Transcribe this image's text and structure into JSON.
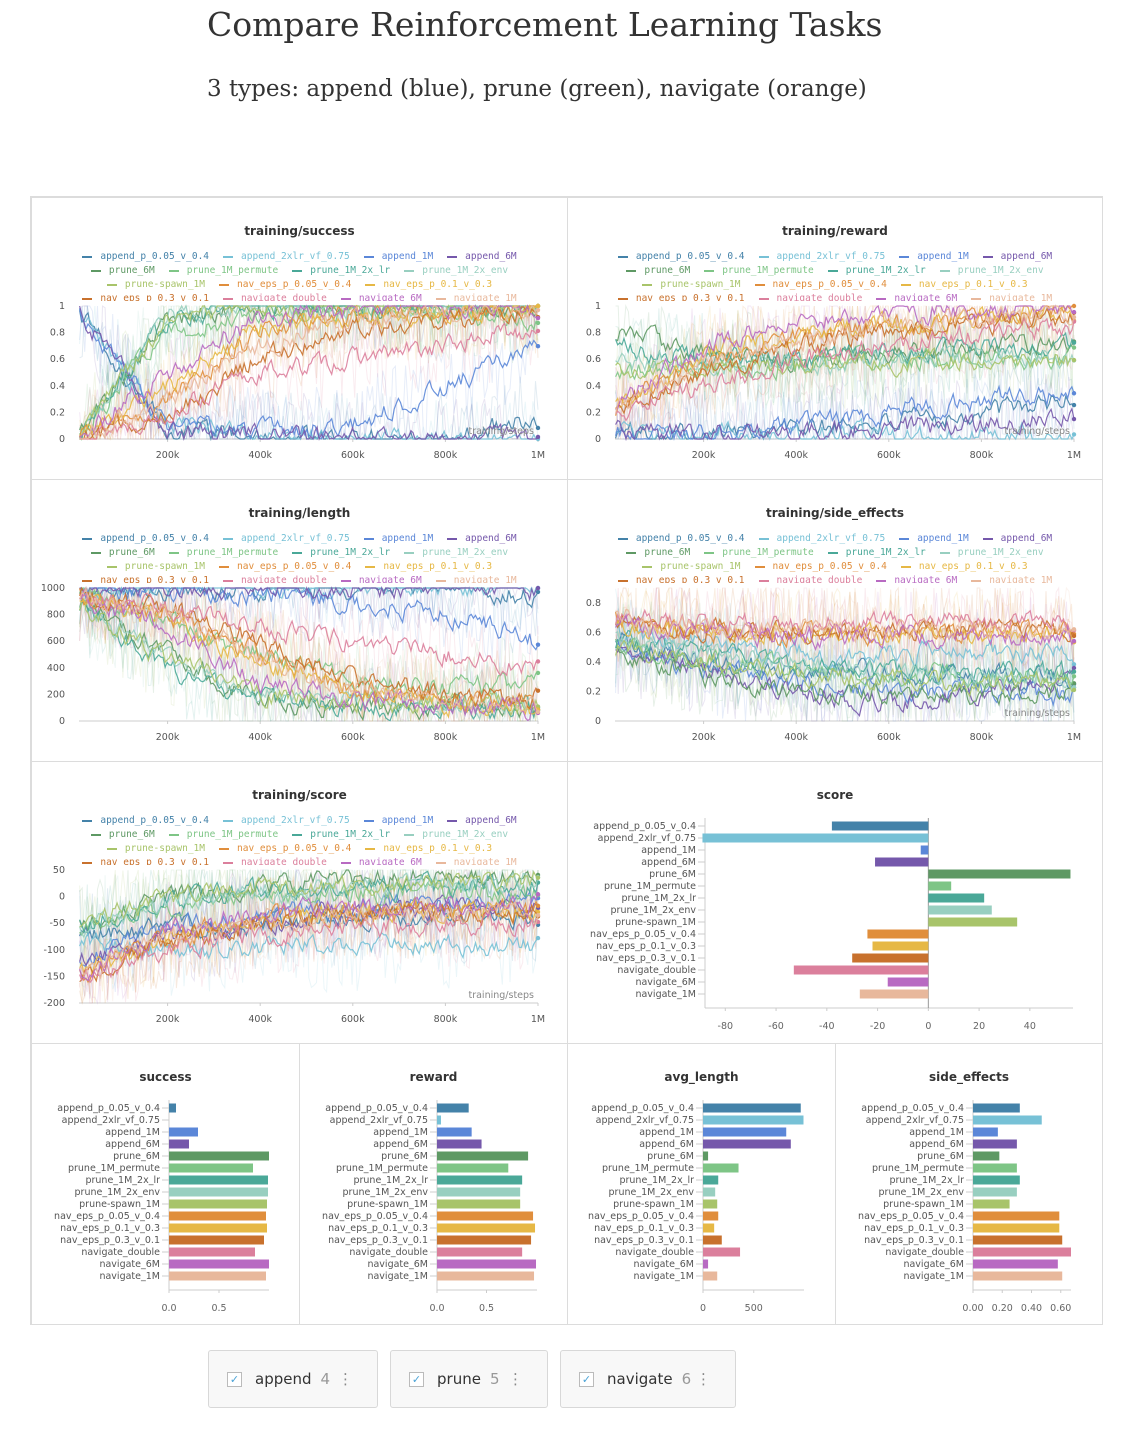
{
  "header": {
    "title": "Compare Reinforcement Learning Tasks",
    "subtitle": "3 types: append (blue), prune (green), navigate (orange)"
  },
  "runs": [
    {
      "name": "append_p_0.05_v_0.4",
      "color": "#4482a9"
    },
    {
      "name": "append_2xlr_vf_0.75",
      "color": "#77c1d6"
    },
    {
      "name": "append_1M",
      "color": "#5b87d8"
    },
    {
      "name": "append_6M",
      "color": "#7558ab"
    },
    {
      "name": "prune_6M",
      "color": "#5e9964"
    },
    {
      "name": "prune_1M_permute",
      "color": "#7ec586"
    },
    {
      "name": "prune_1M_2x_lr",
      "color": "#4aa898"
    },
    {
      "name": "prune_1M_2x_env",
      "color": "#98cfc0"
    },
    {
      "name": "prune-spawn_1M",
      "color": "#a8c46a"
    },
    {
      "name": "nav_eps_p_0.05_v_0.4",
      "color": "#e08e3c"
    },
    {
      "name": "nav_eps_p_0.1_v_0.3",
      "color": "#e6b845"
    },
    {
      "name": "nav_eps_p_0.3_v_0.1",
      "color": "#c8712d"
    },
    {
      "name": "navigate_double",
      "color": "#db7f9c"
    },
    {
      "name": "navigate_6M",
      "color": "#b86ac2"
    },
    {
      "name": "navigate_1M",
      "color": "#e8b89c"
    }
  ],
  "chart_data": [
    {
      "type": "line",
      "title": "training/success",
      "xlabel": "training/steps",
      "x": [
        0,
        200000,
        400000,
        600000,
        800000,
        1000000
      ],
      "xticks": [
        "200k",
        "400k",
        "600k",
        "800k",
        "1M"
      ],
      "ylim": [
        0,
        1
      ],
      "yticks": [
        "0",
        "0.2",
        "0.4",
        "0.6",
        "0.8",
        "1"
      ],
      "legend": "top",
      "series": [
        [
          1,
          0.05,
          0.02,
          0,
          0,
          0.17
        ],
        [
          1,
          0.1,
          0.02,
          0,
          0,
          0
        ],
        [
          1,
          0.1,
          0.05,
          0.1,
          0.4,
          0.7
        ],
        [
          1,
          0.05,
          0.02,
          0,
          0,
          0
        ],
        [
          0,
          0.9,
          1,
          1,
          1,
          0.98
        ],
        [
          0,
          0.8,
          0.95,
          0.97,
          0.95,
          0.85
        ],
        [
          0,
          0.9,
          1,
          1,
          1,
          0.98
        ],
        [
          0,
          0.95,
          1,
          1,
          1,
          0.98
        ],
        [
          0,
          0.9,
          0.98,
          0.98,
          0.97,
          0.98
        ],
        [
          0,
          0.3,
          0.8,
          0.95,
          0.95,
          0.95
        ],
        [
          0,
          0.4,
          0.85,
          0.9,
          0.95,
          0.97
        ],
        [
          0,
          0.2,
          0.6,
          0.85,
          0.9,
          0.95
        ],
        [
          0,
          0.2,
          0.5,
          0.6,
          0.7,
          0.85
        ],
        [
          0,
          0.5,
          0.9,
          0.98,
          1,
          1
        ],
        [
          0,
          0.3,
          0.7,
          0.9,
          0.95,
          0.97
        ]
      ]
    },
    {
      "type": "line",
      "title": "training/reward",
      "xlabel": "training/steps",
      "x": [
        0,
        200000,
        400000,
        600000,
        800000,
        1000000
      ],
      "xticks": [
        "200k",
        "400k",
        "600k",
        "800k",
        "1M"
      ],
      "ylim": [
        0,
        1
      ],
      "yticks": [
        "0",
        "0.2",
        "0.4",
        "0.6",
        "0.8",
        "1"
      ],
      "legend": "top",
      "series": [
        [
          0.05,
          0.05,
          0.08,
          0.12,
          0.2,
          0.3
        ],
        [
          0.03,
          0.03,
          0.03,
          0.03,
          0.03,
          0.03
        ],
        [
          0.05,
          0.05,
          0.1,
          0.2,
          0.3,
          0.35
        ],
        [
          0.05,
          0.03,
          0.05,
          0.08,
          0.12,
          0.15
        ],
        [
          0.8,
          0.65,
          0.6,
          0.65,
          0.7,
          0.72
        ],
        [
          0.5,
          0.55,
          0.55,
          0.6,
          0.6,
          0.6
        ],
        [
          0.7,
          0.6,
          0.6,
          0.65,
          0.68,
          0.7
        ],
        [
          0.6,
          0.55,
          0.55,
          0.6,
          0.62,
          0.62
        ],
        [
          0.5,
          0.55,
          0.55,
          0.58,
          0.6,
          0.6
        ],
        [
          0.2,
          0.6,
          0.75,
          0.85,
          0.9,
          0.95
        ],
        [
          0.2,
          0.65,
          0.8,
          0.85,
          0.9,
          0.97
        ],
        [
          0.2,
          0.5,
          0.7,
          0.8,
          0.85,
          0.92
        ],
        [
          0.15,
          0.4,
          0.6,
          0.7,
          0.8,
          0.85
        ],
        [
          0.2,
          0.7,
          0.9,
          0.95,
          0.97,
          0.98
        ],
        [
          0.2,
          0.55,
          0.75,
          0.85,
          0.9,
          0.95
        ]
      ]
    },
    {
      "type": "line",
      "title": "training/length",
      "xlabel": "",
      "x": [
        0,
        200000,
        400000,
        600000,
        800000,
        1000000
      ],
      "xticks": [
        "200k",
        "400k",
        "600k",
        "800k",
        "1M"
      ],
      "ylim": [
        0,
        1000
      ],
      "yticks": [
        "0",
        "200",
        "400",
        "600",
        "800",
        "1000"
      ],
      "legend": "top",
      "series": [
        [
          1000,
          990,
          995,
          1000,
          1000,
          950
        ],
        [
          1000,
          990,
          1000,
          1000,
          1000,
          1000
        ],
        [
          1000,
          950,
          950,
          900,
          800,
          600
        ],
        [
          1000,
          990,
          1000,
          1000,
          1000,
          990
        ],
        [
          900,
          500,
          150,
          100,
          100,
          90
        ],
        [
          950,
          750,
          500,
          300,
          250,
          300
        ],
        [
          900,
          400,
          150,
          120,
          110,
          100
        ],
        [
          900,
          450,
          200,
          150,
          120,
          110
        ],
        [
          900,
          450,
          200,
          130,
          120,
          120
        ],
        [
          950,
          800,
          500,
          250,
          150,
          150
        ],
        [
          950,
          750,
          450,
          200,
          130,
          110
        ],
        [
          950,
          850,
          600,
          300,
          200,
          180
        ],
        [
          950,
          850,
          700,
          600,
          500,
          400
        ],
        [
          950,
          700,
          300,
          150,
          100,
          90
        ],
        [
          950,
          800,
          500,
          250,
          150,
          140
        ]
      ]
    },
    {
      "type": "line",
      "title": "training/side_effects",
      "xlabel": "training/steps",
      "x": [
        0,
        200000,
        400000,
        600000,
        800000,
        1000000
      ],
      "xticks": [
        "200k",
        "400k",
        "600k",
        "800k",
        "1M"
      ],
      "ylim": [
        0,
        0.9
      ],
      "yticks": [
        "0",
        "0.2",
        "0.4",
        "0.6",
        "0.8"
      ],
      "legend": "top",
      "series": [
        [
          0.55,
          0.4,
          0.35,
          0.32,
          0.3,
          0.3
        ],
        [
          0.6,
          0.5,
          0.45,
          0.45,
          0.47,
          0.47
        ],
        [
          0.5,
          0.35,
          0.25,
          0.2,
          0.18,
          0.17
        ],
        [
          0.5,
          0.35,
          0.2,
          0.12,
          0.2,
          0.28
        ],
        [
          0.5,
          0.3,
          0.2,
          0.18,
          0.18,
          0.18
        ],
        [
          0.55,
          0.4,
          0.35,
          0.32,
          0.3,
          0.3
        ],
        [
          0.55,
          0.45,
          0.38,
          0.33,
          0.32,
          0.32
        ],
        [
          0.55,
          0.45,
          0.38,
          0.33,
          0.3,
          0.3
        ],
        [
          0.5,
          0.4,
          0.32,
          0.28,
          0.26,
          0.25
        ],
        [
          0.7,
          0.6,
          0.6,
          0.6,
          0.6,
          0.6
        ],
        [
          0.65,
          0.6,
          0.6,
          0.58,
          0.6,
          0.6
        ],
        [
          0.7,
          0.62,
          0.62,
          0.6,
          0.62,
          0.62
        ],
        [
          0.7,
          0.65,
          0.65,
          0.66,
          0.66,
          0.67
        ],
        [
          0.65,
          0.58,
          0.57,
          0.57,
          0.57,
          0.58
        ],
        [
          0.7,
          0.62,
          0.62,
          0.6,
          0.61,
          0.62
        ]
      ]
    },
    {
      "type": "line",
      "title": "training/score",
      "xlabel": "training/steps",
      "x": [
        0,
        200000,
        400000,
        600000,
        800000,
        1000000
      ],
      "xticks": [
        "200k",
        "400k",
        "600k",
        "800k",
        "1M"
      ],
      "ylim": [
        -200,
        50
      ],
      "yticks": [
        "-200",
        "-150",
        "-100",
        "-50",
        "0",
        "50"
      ],
      "legend": "top",
      "series": [
        [
          -70,
          -60,
          -50,
          -45,
          -40,
          -38
        ],
        [
          -90,
          -100,
          -95,
          -92,
          -90,
          -89
        ],
        [
          -120,
          -60,
          -40,
          -20,
          -10,
          -3
        ],
        [
          -120,
          -80,
          -50,
          -30,
          -25,
          -21
        ],
        [
          -60,
          0,
          20,
          30,
          40,
          30
        ],
        [
          -60,
          -20,
          0,
          5,
          8,
          9
        ],
        [
          -60,
          -10,
          10,
          15,
          20,
          22
        ],
        [
          -60,
          -10,
          10,
          18,
          22,
          25
        ],
        [
          -60,
          -5,
          15,
          20,
          30,
          35
        ],
        [
          -150,
          -80,
          -40,
          -30,
          -25,
          -24
        ],
        [
          -150,
          -80,
          -40,
          -30,
          -25,
          -22
        ],
        [
          -150,
          -90,
          -50,
          -35,
          -30,
          -30
        ],
        [
          -150,
          -100,
          -70,
          -60,
          -55,
          -53
        ],
        [
          -150,
          -60,
          -30,
          -20,
          -18,
          -16
        ],
        [
          -150,
          -80,
          -45,
          -35,
          -30,
          -27
        ]
      ]
    },
    {
      "type": "bar",
      "title": "score",
      "xlim": [
        -88,
        57
      ],
      "xticks": [
        -80,
        -60,
        -40,
        -20,
        0,
        20,
        40
      ],
      "values": [
        -38,
        -89,
        -3,
        -21,
        56,
        9,
        22,
        25,
        35,
        -24,
        -22,
        -30,
        -53,
        -16,
        -27
      ]
    },
    {
      "type": "bar",
      "title": "success",
      "xlim": [
        0,
        1
      ],
      "xticks": [
        0,
        0.5
      ],
      "ticklabels": [
        "0.0",
        "0.5"
      ],
      "values": [
        0.07,
        0,
        0.29,
        0.2,
        1.0,
        0.84,
        0.99,
        0.99,
        0.98,
        0.97,
        0.98,
        0.95,
        0.86,
        1.0,
        0.97
      ]
    },
    {
      "type": "bar",
      "title": "reward",
      "xlim": [
        0,
        1.01
      ],
      "xticks": [
        0,
        0.5
      ],
      "ticklabels": [
        "0.0",
        "0.5"
      ],
      "values": [
        0.32,
        0.04,
        0.35,
        0.45,
        0.92,
        0.72,
        0.86,
        0.84,
        0.84,
        0.97,
        0.99,
        0.95,
        0.86,
        1.0,
        0.98
      ]
    },
    {
      "type": "bar",
      "title": "avg_length",
      "xlim": [
        0,
        995
      ],
      "xticks": [
        0,
        500
      ],
      "ticklabels": [
        "0",
        "500"
      ],
      "values": [
        963,
        990,
        820,
        865,
        50,
        350,
        150,
        120,
        140,
        150,
        110,
        185,
        365,
        50,
        140
      ]
    },
    {
      "type": "bar",
      "title": "side_effects",
      "xlim": [
        0,
        0.67
      ],
      "xticks": [
        0,
        0.2,
        0.4,
        0.6
      ],
      "ticklabels": [
        "0.00",
        "0.20",
        "0.40",
        "0.60"
      ],
      "values": [
        0.32,
        0.47,
        0.17,
        0.3,
        0.18,
        0.3,
        0.32,
        0.3,
        0.25,
        0.59,
        0.59,
        0.61,
        0.67,
        0.58,
        0.61
      ]
    }
  ],
  "groups": [
    {
      "label": "append",
      "count": "4",
      "checked": true
    },
    {
      "label": "prune",
      "count": "5",
      "checked": true
    },
    {
      "label": "navigate",
      "count": "6",
      "checked": true
    }
  ],
  "icons": {
    "check": "✓",
    "more": "⋮"
  }
}
